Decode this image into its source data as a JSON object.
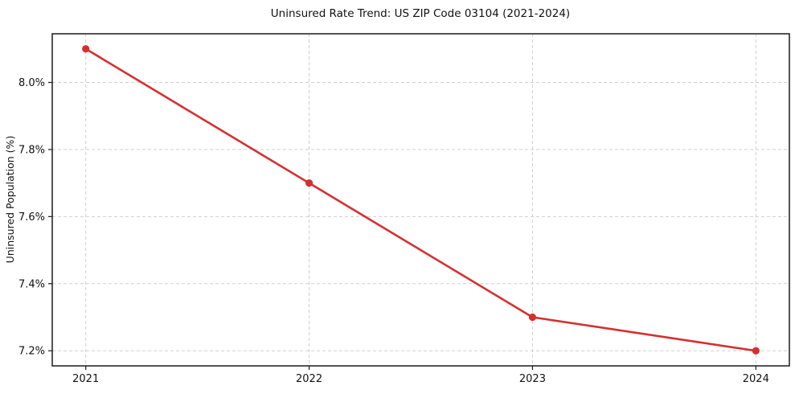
{
  "figure": {
    "title": "Uninsured Rate Trend: US ZIP Code 03104 (2021-2024)",
    "y_axis_label": "Uninsured Population (%)"
  },
  "chart_data": {
    "type": "line",
    "title": "Uninsured Rate Trend: US ZIP Code 03104 (2021-2024)",
    "xlabel": "",
    "ylabel": "Uninsured Population (%)",
    "categories": [
      "2021",
      "2022",
      "2023",
      "2024"
    ],
    "x": [
      2021,
      2022,
      2023,
      2024
    ],
    "series": [
      {
        "name": "Uninsured rate",
        "values": [
          8.1,
          7.7,
          7.3,
          7.2
        ]
      }
    ],
    "xlim": [
      2020.85,
      2024.15
    ],
    "ylim": [
      7.155,
      8.145
    ],
    "xticks": [
      2021,
      2022,
      2023,
      2024
    ],
    "xtick_labels": [
      "2021",
      "2022",
      "2023",
      "2024"
    ],
    "yticks": [
      7.2,
      7.4,
      7.6,
      7.8,
      8.0
    ],
    "ytick_labels": [
      "7.2%",
      "7.4%",
      "7.6%",
      "7.8%",
      "8.0%"
    ],
    "grid": true,
    "grid_style": "dashed",
    "legend_position": "none",
    "line_color": "#d62f2f",
    "marker": "circle",
    "grid_color": "#cfcfcf",
    "axis_color": "#1a1a1a",
    "background_color": "#ffffff"
  }
}
